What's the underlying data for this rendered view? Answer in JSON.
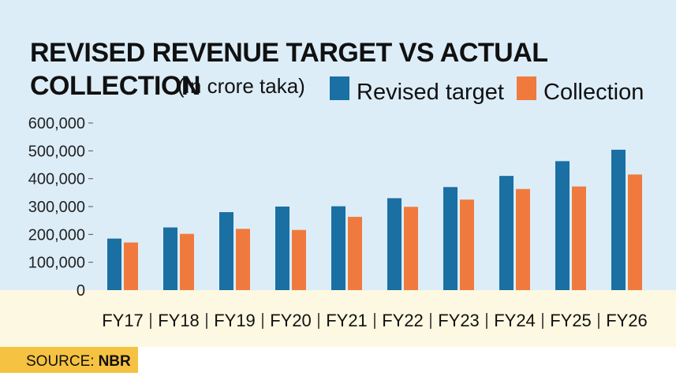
{
  "chart_data": {
    "type": "bar",
    "title_line1": "REVISED REVENUE TARGET VS ACTUAL",
    "title_line2": "COLLECTION",
    "unit_note": "(In crore taka)",
    "categories": [
      "FY17",
      "FY18",
      "FY19",
      "FY20",
      "FY21",
      "FY22",
      "FY23",
      "FY24",
      "FY25",
      "FY26"
    ],
    "series": [
      {
        "name": "Revised target",
        "color": "#1a6fa3",
        "values": [
          185000,
          225000,
          280000,
          300000,
          301000,
          330000,
          370000,
          410000,
          463000,
          504000
        ]
      },
      {
        "name": "Collection",
        "color": "#f07a3e",
        "values": [
          171000,
          202000,
          220000,
          216000,
          263000,
          299000,
          325000,
          363000,
          372000,
          415000
        ]
      }
    ],
    "yticks": [
      "0",
      "100,000",
      "200,000",
      "300,000",
      "400,000",
      "500,000",
      "600,000"
    ],
    "ylim": [
      0,
      600000
    ],
    "legend_position": "top-right",
    "grid": false
  },
  "source": {
    "label": "SOURCE:",
    "value": "NBR"
  },
  "colors": {
    "background": "#dcedf8",
    "footer_band": "#fdf8e1",
    "source_box": "#f5c242"
  }
}
